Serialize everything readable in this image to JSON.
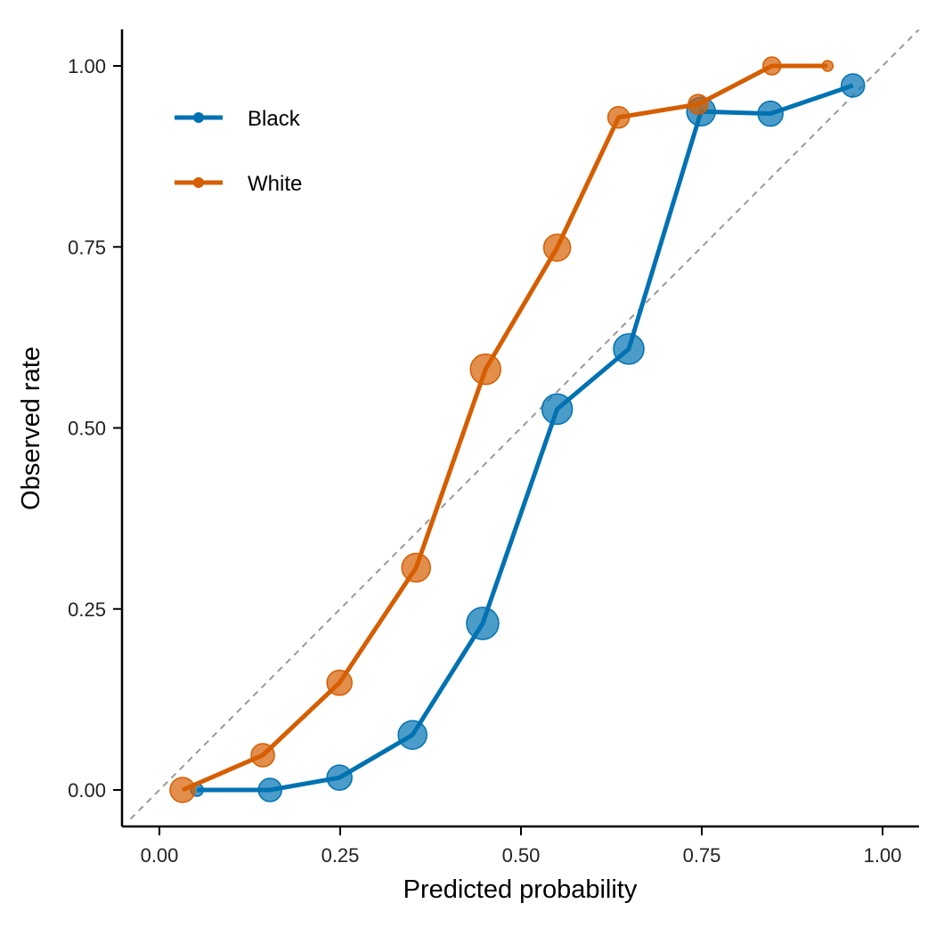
{
  "chart_data": {
    "type": "line",
    "xlabel": "Predicted probability",
    "ylabel": "Observed rate",
    "xlim": [
      -0.05,
      1.05
    ],
    "ylim": [
      -0.05,
      1.05
    ],
    "xticks": [
      "0.00",
      "0.25",
      "0.50",
      "0.75",
      "1.00"
    ],
    "yticks": [
      "0.00",
      "0.25",
      "0.50",
      "0.75",
      "1.00"
    ],
    "grid": false,
    "legend_position": "top-left",
    "reference_line": {
      "type": "diagonal",
      "style": "dashed",
      "color": "#999999"
    },
    "series": [
      {
        "name": "Black",
        "color": "#0072B2",
        "x": [
          0.052,
          0.153,
          0.249,
          0.35,
          0.447,
          0.55,
          0.649,
          0.749,
          0.845,
          0.959
        ],
        "y": [
          0.0,
          0.0,
          0.017,
          0.076,
          0.23,
          0.526,
          0.609,
          0.937,
          0.934,
          0.973
        ],
        "relative_point_size": [
          7,
          13,
          14,
          16,
          18,
          17,
          17,
          16,
          14,
          13
        ]
      },
      {
        "name": "White",
        "color": "#D55E00",
        "x": [
          0.032,
          0.143,
          0.249,
          0.355,
          0.451,
          0.55,
          0.635,
          0.745,
          0.847,
          0.924
        ],
        "y": [
          0.0,
          0.048,
          0.148,
          0.307,
          0.581,
          0.749,
          0.929,
          0.947,
          1.0,
          1.0
        ],
        "relative_point_size": [
          14,
          13,
          14,
          16,
          17,
          15,
          12,
          11,
          10,
          6
        ]
      }
    ]
  }
}
